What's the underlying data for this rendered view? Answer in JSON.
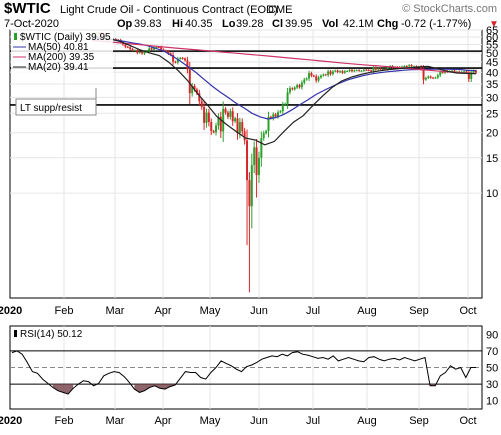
{
  "header": {
    "symbol": "$WTIC",
    "description": "Light Crude Oil - Continuous Contract (EOD)",
    "exchange": "CME",
    "date": "7-Oct-2020",
    "open_label": "Op",
    "open": "39.83",
    "high_label": "Hi",
    "high": "40.35",
    "low_label": "Lo",
    "low": "39.28",
    "close_label": "Cl",
    "close": "39.95",
    "vol_label": "Vol",
    "vol": "42.1M",
    "chg_label": "Chg",
    "chg": "-0.72 (-1.77%)",
    "chg_arrow": "▼",
    "brand": "© StockCharts.com"
  },
  "legend": {
    "main": "$WTIC (Daily) 39.95",
    "ma50": "MA(50) 40.81",
    "ma200": "MA(200) 39.35",
    "ma20": "MA(20) 39.41"
  },
  "annotation": {
    "text": "LT supp/resist"
  },
  "rsi_legend": "RSI(14) 50.12",
  "colors": {
    "up": "#2ca02c",
    "down": "#d62728",
    "ma50": "#3333aa",
    "ma200": "#cc3366",
    "ma20": "#222222",
    "rsi": "#000000",
    "rsi_overbought_fill": "#7a4a50",
    "rsi_oversold_fill": "#7a4a50"
  },
  "chart_data": [
    {
      "type": "candlestick",
      "title": "$WTIC (Daily) 39.95",
      "x_ticks": [
        "2020",
        "Feb",
        "Mar",
        "Apr",
        "May",
        "Jun",
        "Jul",
        "Aug",
        "Sep",
        "Oct"
      ],
      "y_scale": "log",
      "y_ticks": [
        10,
        15,
        20,
        25,
        30,
        35,
        40,
        45,
        50,
        55,
        60,
        65
      ],
      "ylim": [
        3,
        65
      ],
      "horizontal_lines": [
        51,
        42,
        27.5
      ],
      "series": [
        {
          "name": "$WTIC",
          "values": [
            61.1,
            62.7,
            63.0,
            62.3,
            59.6,
            59.6,
            58.1,
            58.3,
            58.5,
            58.6,
            58.1,
            57.9,
            56.6,
            55.1,
            53.6,
            53.3,
            52.2,
            51.6,
            51.6,
            50.1,
            50.4,
            49.6,
            50.8,
            51.2,
            52.7,
            51.9,
            53.0,
            53.5,
            53.4,
            52.0,
            51.4,
            50.9,
            49.6,
            48.8,
            45.2,
            44.8,
            46.7,
            47.2,
            46.8,
            45.9,
            41.4,
            31.5,
            34.2,
            32.8,
            31.5,
            28.7,
            26.9,
            22.4,
            25.2,
            22.6,
            20.4,
            20.1,
            21.7,
            24.0,
            20.3,
            26.3,
            25.2,
            24.0,
            25.6,
            22.8,
            23.6,
            19.9,
            22.6,
            20.3,
            18.3,
            11.6,
            8.6,
            13.8,
            16.9,
            12.3,
            15.0,
            18.8,
            19.9,
            20.4,
            24.0,
            23.6,
            24.7,
            24.1,
            25.3,
            25.6,
            27.6,
            27.9,
            31.8,
            33.3,
            32.9,
            33.6,
            34.5,
            33.7,
            35.5,
            36.8,
            37.3,
            39.6,
            38.5,
            38.2,
            36.4,
            37.7,
            38.5,
            39.0,
            38.8,
            40.4,
            39.2,
            40.4,
            40.8,
            40.1,
            40.5,
            39.8,
            40.5,
            40.6,
            41.1,
            40.5,
            40.9,
            41.0,
            40.7,
            40.7,
            41.2,
            41.1,
            40.9,
            40.6,
            42.2,
            41.3,
            41.8,
            41.5,
            41.6,
            41.4,
            42.3,
            42.9,
            42.3,
            42.6,
            42.5,
            42.2,
            42.7,
            43.0,
            42.8,
            43.4,
            42.8,
            42.9,
            42.6,
            42.7,
            41.5,
            36.8,
            37.5,
            38.1,
            37.6,
            37.5,
            37.7,
            38.7,
            40.1,
            39.8,
            40.6,
            40.2,
            40.5,
            40.8,
            40.1,
            40.3,
            39.9,
            40.2,
            40.4,
            40.0,
            37.1,
            39.9,
            40.7,
            39.9
          ]
        },
        {
          "name": "MA(50) 40.81",
          "values": [
            59,
            59,
            58.6,
            57.9,
            57.1,
            56.1,
            55.3,
            54.2,
            52.6,
            51.0,
            48.4,
            45.6,
            42.7,
            39.9,
            36.9,
            34.2,
            31.9,
            30.0,
            28.1,
            26.6,
            25.0,
            24.0,
            23.4,
            23.8,
            24.7,
            26.0,
            27.6,
            29.2,
            31.0,
            32.5,
            34.0,
            35.4,
            36.7,
            37.7,
            38.6,
            39.3,
            39.8,
            40.3,
            40.6,
            41.0,
            41.2,
            41.3,
            41.4,
            41.5,
            41.5,
            41.4,
            41.3,
            40.9,
            40.8
          ]
        },
        {
          "name": "MA(200) 39.35",
          "values": [
            57.6,
            57.0,
            56.3,
            55.6,
            54.9,
            54.2,
            53.5,
            52.8,
            52.2,
            51.6,
            51.0,
            50.4,
            49.8,
            49.2,
            48.6,
            48.0,
            47.4,
            46.8,
            46.2,
            45.6,
            45.0,
            44.4,
            43.9,
            43.4,
            43.0,
            42.5,
            42.0,
            41.5,
            41.0,
            40.5,
            40.1,
            39.7,
            39.4
          ]
        },
        {
          "name": "MA(20) 39.41",
          "values": [
            60.5,
            59.8,
            58.4,
            56.8,
            54.3,
            51.8,
            50.0,
            48.5,
            44.9,
            40.7,
            36.2,
            31.3,
            27.6,
            24.1,
            22.0,
            20.3,
            18.8,
            18.4,
            17.4,
            18.1,
            20.3,
            22.6,
            24.3,
            27.3,
            30.4,
            33.6,
            36.2,
            37.8,
            39.0,
            40.0,
            40.7,
            41.3,
            41.7,
            42.1,
            42.5,
            42.8,
            41.7,
            40.5,
            39.7,
            39.5,
            39.4
          ]
        }
      ]
    },
    {
      "type": "line",
      "title": "RSI(14) 50.12",
      "x_ticks": [
        "2020",
        "Feb",
        "Mar",
        "Apr",
        "May",
        "Jun",
        "Jul",
        "Aug",
        "Sep",
        "Oct"
      ],
      "y_ticks": [
        10,
        30,
        50,
        70,
        90
      ],
      "ylim": [
        0,
        100
      ],
      "reference_lines": [
        70,
        50,
        30
      ],
      "series": [
        {
          "name": "RSI(14)",
          "values": [
            68,
            70,
            66,
            56,
            45,
            43,
            36,
            31,
            26,
            22,
            20,
            18,
            25,
            30,
            34,
            33,
            28,
            31,
            40,
            43,
            45,
            44,
            39,
            32,
            24,
            20,
            22,
            26,
            28,
            25,
            24,
            27,
            29,
            37,
            45,
            44,
            44,
            38,
            36,
            44,
            50,
            58,
            55,
            52,
            48,
            45,
            51,
            53,
            56,
            60,
            62,
            64,
            63,
            66,
            64,
            68,
            69,
            66,
            65,
            63,
            61,
            62,
            60,
            64,
            58,
            60,
            62,
            60,
            58,
            57,
            62,
            63,
            60,
            58,
            60,
            61,
            59,
            62,
            60,
            58,
            60,
            62,
            28,
            28,
            40,
            44,
            52,
            48,
            50,
            38,
            50,
            50
          ]
        }
      ]
    }
  ]
}
